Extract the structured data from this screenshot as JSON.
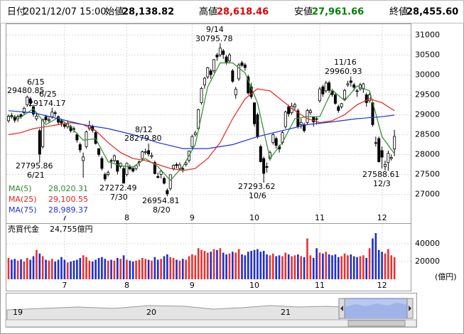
{
  "header": [
    {
      "label": "日付",
      "value": "2021/12/07 15:00"
    },
    {
      "label": "始値",
      "value": "28,138.82"
    },
    {
      "label": "高値",
      "value": "28,618.46"
    },
    {
      "label": "安値",
      "value": "27,961.66"
    },
    {
      "label": "終値",
      "value": "28,455.60"
    }
  ],
  "chart_data": [
    {
      "type": "candlestick",
      "ylim": [
        26600,
        31290
      ],
      "yticks": [
        27000,
        27500,
        28000,
        28500,
        29000,
        29500,
        30000,
        30500,
        31000
      ],
      "xticks": [
        {
          "value": 18,
          "label": "7"
        },
        {
          "value": 38,
          "label": "8"
        },
        {
          "value": 59,
          "label": "9"
        },
        {
          "value": 79,
          "label": "10"
        },
        {
          "value": 100,
          "label": "11"
        },
        {
          "value": 120,
          "label": "12"
        }
      ],
      "grid": true,
      "up_color": "#ffffff",
      "down_color": "#000000",
      "candles": [
        [
          28850,
          29010,
          28800,
          28964
        ],
        [
          28980,
          29050,
          28900,
          28963
        ],
        [
          28950,
          28990,
          28800,
          28861
        ],
        [
          28900,
          29000,
          28820,
          28958
        ],
        [
          29000,
          29030,
          28900,
          28948
        ],
        [
          29050,
          29200,
          29000,
          29161
        ],
        [
          29250,
          29480.85,
          29200,
          29441
        ],
        [
          29400,
          29450,
          29200,
          29291
        ],
        [
          29200,
          29250,
          28950,
          29018
        ],
        [
          28900,
          29050,
          28850,
          28964
        ],
        [
          28600,
          28650,
          27795.86,
          28010
        ],
        [
          28200,
          28900,
          28150,
          28884
        ],
        [
          28950,
          29000,
          28800,
          28874
        ],
        [
          28850,
          28950,
          28800,
          28875
        ],
        [
          28950,
          29174.17,
          28900,
          29066
        ],
        [
          29050,
          29100,
          28950,
          29048
        ],
        [
          28950,
          28980,
          28750,
          28812
        ],
        [
          28850,
          28900,
          28700,
          28791
        ],
        [
          28750,
          28800,
          28650,
          28707
        ],
        [
          28700,
          28850,
          28650,
          28783
        ],
        [
          28700,
          28750,
          28550,
          28598
        ],
        [
          28650,
          28700,
          28550,
          28643
        ],
        [
          28500,
          28550,
          28300,
          28366
        ],
        [
          28250,
          28300,
          28050,
          28118
        ],
        [
          27850,
          28050,
          27420,
          27940
        ],
        [
          28200,
          28600,
          28150,
          28569
        ],
        [
          28650,
          28850,
          28600,
          28718
        ],
        [
          28700,
          28750,
          28550,
          28608
        ],
        [
          28550,
          28600,
          28250,
          28279
        ],
        [
          28150,
          28150,
          27950,
          28003
        ],
        [
          27900,
          27950,
          27600,
          27652
        ],
        [
          27500,
          27550,
          27330,
          27388
        ],
        [
          27500,
          27600,
          27450,
          27548
        ],
        [
          27850,
          27900,
          27650,
          27833
        ],
        [
          27850,
          28000,
          27800,
          27970
        ],
        [
          27850,
          27850,
          27500,
          27581
        ],
        [
          27700,
          27800,
          27650,
          27782
        ],
        [
          27650,
          27700,
          27272.49,
          27283
        ],
        [
          27500,
          27800,
          27450,
          27781
        ],
        [
          27700,
          27750,
          27600,
          27641
        ],
        [
          27650,
          27700,
          27550,
          27584
        ],
        [
          27650,
          27750,
          27600,
          27728
        ],
        [
          27800,
          27850,
          27700,
          27820
        ],
        [
          27900,
          28100,
          27850,
          28070
        ],
        [
          28050,
          28150,
          28000,
          28070
        ],
        [
          28100,
          28279.8,
          27950,
          28015
        ],
        [
          27950,
          28050,
          27900,
          27977
        ],
        [
          27800,
          27850,
          27500,
          27523
        ],
        [
          27450,
          27550,
          27400,
          27424
        ],
        [
          27500,
          27600,
          27400,
          27585
        ],
        [
          27400,
          27450,
          27250,
          27281
        ],
        [
          27100,
          27150,
          26954.81,
          27013
        ],
        [
          27150,
          27500,
          27100,
          27494
        ],
        [
          27650,
          27750,
          27600,
          27732
        ],
        [
          27750,
          27800,
          27650,
          27724
        ],
        [
          27650,
          27800,
          27600,
          27742
        ],
        [
          27650,
          27700,
          27550,
          27641
        ],
        [
          27750,
          27850,
          27700,
          27789
        ],
        [
          27850,
          28100,
          27800,
          28089
        ],
        [
          28200,
          28500,
          28150,
          28451
        ],
        [
          28500,
          28600,
          28450,
          28543
        ],
        [
          28650,
          29150,
          28600,
          29128
        ],
        [
          29300,
          29700,
          29250,
          29659
        ],
        [
          29750,
          29950,
          29650,
          29916
        ],
        [
          29950,
          30200,
          29900,
          30181
        ],
        [
          30100,
          30150,
          29900,
          30008
        ],
        [
          30100,
          30400,
          30050,
          30381
        ],
        [
          30500,
          30550,
          30350,
          30447
        ],
        [
          30500,
          30795.78,
          30450,
          30670
        ],
        [
          30600,
          30650,
          30400,
          30511
        ],
        [
          30450,
          30500,
          30250,
          30323
        ],
        [
          30350,
          30550,
          30300,
          30500
        ],
        [
          30100,
          30150,
          29800,
          29839
        ],
        [
          29500,
          29700,
          29400,
          29639
        ],
        [
          29900,
          30300,
          29850,
          30248
        ],
        [
          30300,
          30350,
          30200,
          30240
        ],
        [
          30250,
          30300,
          30100,
          30183
        ],
        [
          29950,
          30000,
          29500,
          29544
        ],
        [
          29700,
          29800,
          29400,
          29452
        ],
        [
          29300,
          29300,
          28700,
          28771
        ],
        [
          29000,
          29050,
          28400,
          28444
        ],
        [
          28200,
          28250,
          27800,
          27822
        ],
        [
          27900,
          27950,
          27293.62,
          27528
        ],
        [
          27700,
          27800,
          27550,
          27678
        ],
        [
          27900,
          28100,
          27850,
          28048
        ],
        [
          28300,
          28550,
          28250,
          28498
        ],
        [
          28400,
          28450,
          28150,
          28230
        ],
        [
          28200,
          28250,
          28050,
          28140
        ],
        [
          28300,
          28600,
          28250,
          28550
        ],
        [
          28700,
          29100,
          28650,
          29068
        ],
        [
          29200,
          29250,
          28950,
          29025
        ],
        [
          29050,
          29300,
          29000,
          29215
        ],
        [
          29200,
          29300,
          29100,
          29255
        ],
        [
          29100,
          29150,
          28650,
          28708
        ],
        [
          28750,
          28900,
          28650,
          28804
        ],
        [
          28750,
          28800,
          28550,
          28600
        ],
        [
          28800,
          29150,
          28750,
          29106
        ],
        [
          29050,
          29150,
          29000,
          29098
        ],
        [
          28950,
          28950,
          28700,
          28820
        ],
        [
          28900,
          28950,
          28750,
          28892
        ],
        [
          29350,
          29700,
          29300,
          29647
        ],
        [
          29700,
          29750,
          29450,
          29520
        ],
        [
          29600,
          29850,
          29550,
          29794
        ],
        [
          29800,
          29850,
          29550,
          29611
        ],
        [
          29600,
          29650,
          29450,
          29507
        ],
        [
          29500,
          29550,
          29250,
          29285
        ],
        [
          29200,
          29250,
          29050,
          29106
        ],
        [
          29200,
          29300,
          29150,
          29277
        ],
        [
          29400,
          29650,
          29350,
          29609
        ],
        [
          29750,
          29850,
          29700,
          29776
        ],
        [
          29850,
          29960.93,
          29700,
          29808
        ],
        [
          29750,
          29800,
          29600,
          29688
        ],
        [
          29600,
          29650,
          29450,
          29598
        ],
        [
          29650,
          29800,
          29600,
          29745
        ],
        [
          29650,
          29800,
          29550,
          29774
        ],
        [
          29500,
          29550,
          29200,
          29302
        ],
        [
          29350,
          29550,
          29300,
          29499
        ],
        [
          29300,
          29300,
          28700,
          28751
        ],
        [
          28300,
          28450,
          28200,
          28283
        ],
        [
          28400,
          28450,
          27800,
          27821
        ],
        [
          28100,
          28200,
          27650,
          27935
        ],
        [
          27700,
          27850,
          27600,
          27753
        ],
        [
          27800,
          28100,
          27588.61,
          28029
        ],
        [
          27900,
          28000,
          27850,
          27927
        ],
        [
          28138.82,
          28618.46,
          27961.66,
          28455.6
        ]
      ],
      "series": [
        {
          "name": "MA(5)",
          "color": "#2e8b2e",
          "value_label": "28,020.31",
          "x": [
            0,
            4,
            8,
            12,
            16,
            20,
            24,
            28,
            32,
            36,
            40,
            44,
            48,
            52,
            56,
            60,
            64,
            68,
            72,
            76,
            80,
            84,
            88,
            92,
            96,
            100,
            104,
            108,
            112,
            116,
            120,
            124
          ],
          "values": [
            28950,
            28940,
            29150,
            28750,
            28930,
            28690,
            28360,
            28400,
            27820,
            27720,
            27690,
            27900,
            27700,
            27350,
            27700,
            28250,
            29700,
            30300,
            30300,
            30050,
            29300,
            27900,
            28300,
            28900,
            28950,
            28950,
            29620,
            29350,
            29720,
            29600,
            28450,
            28020.31
          ]
        },
        {
          "name": "MA(25)",
          "color": "#e8221e",
          "value_label": "29,100.55",
          "x": [
            0,
            4,
            8,
            12,
            16,
            20,
            24,
            28,
            32,
            36,
            40,
            44,
            48,
            52,
            56,
            60,
            64,
            68,
            72,
            76,
            80,
            84,
            88,
            92,
            96,
            100,
            104,
            108,
            112,
            116,
            120,
            124
          ],
          "values": [
            28500,
            28550,
            28650,
            28700,
            28750,
            28800,
            28750,
            28600,
            28300,
            28050,
            27900,
            27850,
            27750,
            27650,
            27600,
            27650,
            27900,
            28300,
            28900,
            29400,
            29650,
            29600,
            29350,
            29100,
            28900,
            28800,
            28850,
            29000,
            29250,
            29400,
            29300,
            29100.55
          ]
        },
        {
          "name": "MA(75)",
          "color": "#2233dd",
          "value_label": "28,989.37",
          "x": [
            0,
            8,
            16,
            24,
            32,
            40,
            48,
            56,
            64,
            72,
            80,
            88,
            96,
            104,
            112,
            120,
            124
          ],
          "values": [
            29100,
            29050,
            28900,
            28750,
            28650,
            28500,
            28300,
            28150,
            28150,
            28250,
            28450,
            28600,
            28750,
            28820,
            28900,
            28950,
            28989.37
          ]
        }
      ],
      "annotations": [
        {
          "date": "6/15",
          "price": "29480.85"
        },
        {
          "date": "6/25",
          "price": "29174.17"
        },
        {
          "date": "6/21",
          "price": "27795.86"
        },
        {
          "date": "8/12",
          "price": "28279.80"
        },
        {
          "date": "7/30",
          "price": "27272.49"
        },
        {
          "date": "8/20",
          "price": "26954.81"
        },
        {
          "date": "9/14",
          "price": "30795.78"
        },
        {
          "date": "10/6",
          "price": "27293.62"
        },
        {
          "date": "11/16",
          "price": "29960.93"
        },
        {
          "date": "12/3",
          "price": "27588.61"
        }
      ]
    },
    {
      "type": "bar",
      "title": "売買代金",
      "value_label": "24,755億円",
      "y_unit": "(億円)",
      "ylim": [
        0,
        60000
      ],
      "yticks": [
        20000,
        40000
      ],
      "grid": true,
      "up_color": "#e8312f",
      "down_color": "#1f2fc8",
      "values": [
        24000,
        22000,
        23000,
        21000,
        22500,
        20000,
        24000,
        22000,
        26000,
        33000,
        29000,
        26000,
        22000,
        21000,
        23000,
        20000,
        22000,
        25000,
        22000,
        19000,
        20000,
        21000,
        22000,
        24000,
        27000,
        25000,
        21000,
        20000,
        22000,
        24000,
        25000,
        23000,
        21000,
        22000,
        21000,
        24000,
        23000,
        27000,
        22000,
        21000,
        20000,
        21000,
        22000,
        24000,
        23000,
        22000,
        21000,
        25000,
        22000,
        23000,
        26000,
        28000,
        25000,
        24000,
        22000,
        21000,
        23000,
        22000,
        26000,
        28000,
        27000,
        35000,
        33000,
        32000,
        30000,
        31000,
        34000,
        33000,
        35000,
        30000,
        28000,
        29000,
        31000,
        30000,
        34000,
        28000,
        27000,
        31000,
        32000,
        33000,
        34000,
        31000,
        32000,
        28000,
        27000,
        29000,
        26000,
        27000,
        26000,
        30000,
        28000,
        26000,
        27000,
        28000,
        26000,
        25000,
        46000,
        27000,
        24000,
        35000,
        30000,
        29000,
        31000,
        28000,
        27000,
        28000,
        25000,
        26000,
        29000,
        27000,
        28000,
        26000,
        25000,
        26000,
        27000,
        24000,
        35000,
        46000,
        52000,
        33000,
        31000,
        29000,
        34000,
        27000,
        24755
      ]
    }
  ],
  "navigator": {
    "labels": [
      "19",
      "20",
      "21"
    ]
  }
}
